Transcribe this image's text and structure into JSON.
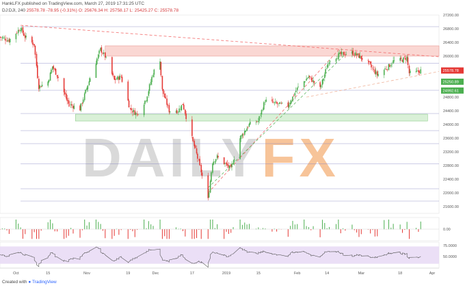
{
  "header": {
    "line1_author": "HankLFX",
    "line1_rest": "published on TradingView.com, March 27, 2019 17:31:25 UTC",
    "symbol": "DJ:DJI, 240",
    "last": "25578.78",
    "change": "-78.95 (-0.31%)",
    "ohlc": "O: 25676.34  H: 25758.17  L: 25425.27  C: 25578.78"
  },
  "footer": {
    "prefix": "Created with",
    "brand": "TradingView"
  },
  "watermark": {
    "text_dark": "DAILY",
    "text_orange": "FX"
  },
  "colors": {
    "up": "#4caf50",
    "down": "#e53935",
    "resistance_zone": "#f8c9c4",
    "support_zone": "#cfeccd",
    "trend_red": "#f26b6b",
    "trend_green": "#5fb55f",
    "level_line": "#8080c0",
    "rsi_band": "#e9dcf5",
    "rsi_line": "#555555"
  },
  "chart_data": {
    "type": "candlestick",
    "symbol": "DJ:DJI",
    "interval": "240",
    "ylim": [
      21400,
      27200
    ],
    "y_ticks": [
      21600,
      22000,
      22400,
      22800,
      23200,
      23600,
      24000,
      24400,
      24800,
      25200,
      25600,
      26000,
      26400,
      26800,
      27200
    ],
    "x_ticks": [
      "Oct",
      "15",
      "Nov",
      "19",
      "Dec",
      "17",
      "2019",
      "15",
      "Feb",
      "14",
      "Mar",
      "18",
      "Apr"
    ],
    "x_tick_dates": [
      "2018-10-01",
      "2018-10-15",
      "2018-11-01",
      "2018-11-19",
      "2018-12-01",
      "2018-12-17",
      "2019-01-01",
      "2019-01-15",
      "2019-02-01",
      "2019-02-14",
      "2019-03-01",
      "2019-03-18",
      "2019-04-01"
    ],
    "price_labels": [
      {
        "text": "25578.78",
        "value": 25578.78,
        "color": "#e53935"
      },
      {
        "text": "25250.89",
        "value": 25250.89,
        "color": "#4caf50"
      },
      {
        "text": "24992.61",
        "value": 24992.61,
        "color": "#4caf50"
      }
    ],
    "horizontal_levels": [
      26860,
      25790,
      25000,
      24320,
      23820,
      23440,
      22850,
      22120,
      21760
    ],
    "resistance_zone": [
      26000,
      26300
    ],
    "support_zone": [
      24100,
      24300
    ],
    "close_path": [
      [
        "2018-09-24",
        26560
      ],
      [
        "2018-09-28",
        26460
      ],
      [
        "2018-10-03",
        26820
      ],
      [
        "2018-10-05",
        26560
      ],
      [
        "2018-10-09",
        26340
      ],
      [
        "2018-10-11",
        25100
      ],
      [
        "2018-10-15",
        25250
      ],
      [
        "2018-10-17",
        25700
      ],
      [
        "2018-10-19",
        25450
      ],
      [
        "2018-10-24",
        24600
      ],
      [
        "2018-10-29",
        24450
      ],
      [
        "2018-11-02",
        25270
      ],
      [
        "2018-11-07",
        26200
      ],
      [
        "2018-11-09",
        25990
      ],
      [
        "2018-11-13",
        25300
      ],
      [
        "2018-11-16",
        25400
      ],
      [
        "2018-11-20",
        24450
      ],
      [
        "2018-11-23",
        24300
      ],
      [
        "2018-11-27",
        24750
      ],
      [
        "2018-11-30",
        25500
      ],
      [
        "2018-12-03",
        25900
      ],
      [
        "2018-12-04",
        25000
      ],
      [
        "2018-12-07",
        24400
      ],
      [
        "2018-12-11",
        24400
      ],
      [
        "2018-12-13",
        24600
      ],
      [
        "2018-12-17",
        23600
      ],
      [
        "2018-12-20",
        22900
      ],
      [
        "2018-12-24",
        21800
      ],
      [
        "2018-12-26",
        22900
      ],
      [
        "2018-12-28",
        23050
      ],
      [
        "2019-01-03",
        22700
      ],
      [
        "2019-01-07",
        23600
      ],
      [
        "2019-01-11",
        24000
      ],
      [
        "2019-01-15",
        24100
      ],
      [
        "2019-01-18",
        24700
      ],
      [
        "2019-01-23",
        24600
      ],
      [
        "2019-01-28",
        24550
      ],
      [
        "2019-02-01",
        25050
      ],
      [
        "2019-02-06",
        25400
      ],
      [
        "2019-02-11",
        25050
      ],
      [
        "2019-02-15",
        25880
      ],
      [
        "2019-02-20",
        26050
      ],
      [
        "2019-02-25",
        26100
      ],
      [
        "2019-02-28",
        26000
      ],
      [
        "2019-03-04",
        25800
      ],
      [
        "2019-03-08",
        25450
      ],
      [
        "2019-03-13",
        25700
      ],
      [
        "2019-03-15",
        25850
      ],
      [
        "2019-03-19",
        25890
      ],
      [
        "2019-03-21",
        25960
      ],
      [
        "2019-03-22",
        25500
      ],
      [
        "2019-03-25",
        25520
      ],
      [
        "2019-03-27",
        25578.78
      ]
    ],
    "volume_like": {
      "type": "histogram",
      "label": "0.00",
      "ylim": [
        -1,
        1
      ]
    },
    "rsi": {
      "labels": [
        "75.0000",
        "50.0000"
      ],
      "ylim": [
        20,
        80
      ],
      "band": [
        30,
        70
      ]
    }
  },
  "axis_labels": {
    "hist_zero": "0.00",
    "rsi_75": "75.0000",
    "rsi_50": "50.0000"
  }
}
